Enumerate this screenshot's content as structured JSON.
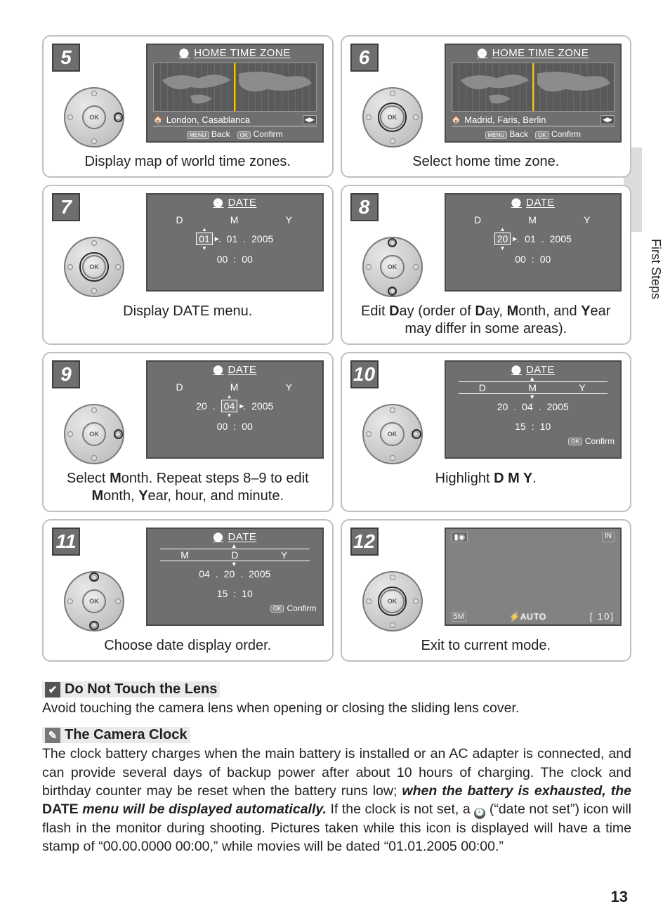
{
  "side_label": "First Steps",
  "page_number": "13",
  "steps": [
    {
      "num": "5",
      "screen": {
        "type": "timezone",
        "title": "HOME TIME ZONE",
        "city": "London, Casablanca",
        "back": "Back",
        "confirm": "Confirm"
      },
      "dial_highlight": [
        "r"
      ],
      "caption": "Display map of world time zones."
    },
    {
      "num": "6",
      "screen": {
        "type": "timezone",
        "title": "HOME TIME ZONE",
        "city": "Madrid, Faris, Berlin",
        "back": "Back",
        "confirm": "Confirm"
      },
      "dial_highlight": [
        "center"
      ],
      "caption": "Select home time zone."
    },
    {
      "num": "7",
      "screen": {
        "type": "date",
        "title": "DATE",
        "head": [
          "D",
          "M",
          "Y"
        ],
        "row": [
          "01",
          "01",
          "2005"
        ],
        "selIndex": 0,
        "selArrow": "r",
        "time": [
          "00",
          "00"
        ]
      },
      "dial_highlight": [
        "center"
      ],
      "caption": "Display DATE menu."
    },
    {
      "num": "8",
      "screen": {
        "type": "date",
        "title": "DATE",
        "head": [
          "D",
          "M",
          "Y"
        ],
        "row": [
          "20",
          "01",
          "2005"
        ],
        "selIndex": 0,
        "selArrow": "r",
        "time": [
          "00",
          "00"
        ]
      },
      "dial_highlight": [
        "t",
        "b"
      ],
      "caption_html": "Edit <b>D</b>ay (order of <b>D</b>ay, <b>M</b>onth, and <b>Y</b>ear may differ in some areas)."
    },
    {
      "num": "9",
      "screen": {
        "type": "date",
        "title": "DATE",
        "head": [
          "D",
          "M",
          "Y"
        ],
        "row": [
          "20",
          "04",
          "2005"
        ],
        "selIndex": 1,
        "selArrow": "r",
        "time": [
          "00",
          "00"
        ]
      },
      "dial_highlight": [
        "r"
      ],
      "caption_html": "Select <b>M</b>onth.  Repeat steps 8–9 to edit <b>M</b>onth, <b>Y</b>ear, hour, and minute."
    },
    {
      "num": "10",
      "screen": {
        "type": "date_boxed",
        "title": "DATE",
        "head": [
          "D",
          "M",
          "Y"
        ],
        "row": [
          "20",
          "04",
          "2005"
        ],
        "time": [
          "15",
          "10"
        ],
        "confirm": "Confirm"
      },
      "dial_highlight": [
        "r"
      ],
      "caption_html": "Highlight <b>D M Y</b>."
    },
    {
      "num": "11",
      "screen": {
        "type": "date_boxed",
        "title": "DATE",
        "head": [
          "M",
          "D",
          "Y"
        ],
        "row": [
          "04",
          "20",
          "2005"
        ],
        "time": [
          "15",
          "10"
        ],
        "confirm": "Confirm"
      },
      "dial_highlight": [
        "t",
        "b"
      ],
      "caption": "Choose date display order."
    },
    {
      "num": "12",
      "screen": {
        "type": "mode",
        "fivem": "5M",
        "auto": "⚡AUTO",
        "count": "[  10]"
      },
      "dial_highlight": [
        "center"
      ],
      "caption": "Exit to current mode."
    }
  ],
  "note1": {
    "title": "Do Not Touch the Lens",
    "body": "Avoid touching the camera lens when opening or closing the sliding lens cover."
  },
  "note2": {
    "title": "The Camera Clock",
    "body_parts": {
      "p1": "The clock battery charges when the main battery is installed or an AC adapter is connected, and can provide several days of backup power after about 10 hours of charging.  The clock and birthday counter may be reset when the battery runs low; ",
      "p2": "when the battery is exhausted, the ",
      "p3": "DATE",
      "p4": " menu will be displayed automatically.",
      "p5": "  If the clock is not set, a ",
      "p6": " (“date not set”) icon will flash in the monitor during shooting.  Pictures taken while this icon is displayed will have a time stamp of  “00.00.0000 00:00,” while movies will be dated “01.01.2005 00:00.”"
    }
  }
}
